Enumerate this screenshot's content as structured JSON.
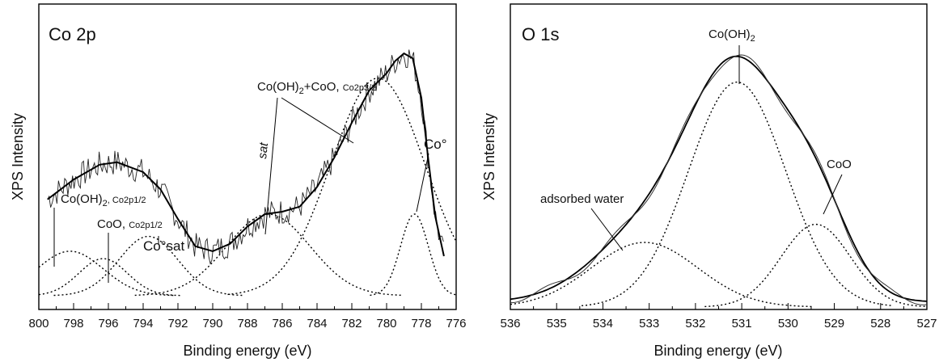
{
  "chart_data": [
    {
      "type": "line",
      "panel_label": "Co 2p",
      "xlabel": "Binding energy (eV)",
      "ylabel": "XPS Intensity",
      "xlim": [
        800,
        776
      ],
      "ylim": [
        0,
        1
      ],
      "x_reversed": true,
      "x_ticks": [
        "800",
        "798",
        "796",
        "794",
        "792",
        "790",
        "788",
        "786",
        "784",
        "782",
        "780",
        "778",
        "776"
      ],
      "series": [
        {
          "style": "envelope",
          "x": [
            799.5,
            798,
            796.5,
            795.5,
            794,
            793,
            792,
            791,
            790,
            789,
            788,
            787,
            786,
            785,
            784,
            783,
            782,
            781,
            780,
            779.5,
            779,
            778.5,
            778,
            777.6,
            777.2,
            776.7
          ],
          "y": [
            0.39,
            0.47,
            0.53,
            0.54,
            0.5,
            0.43,
            0.31,
            0.2,
            0.18,
            0.21,
            0.28,
            0.33,
            0.34,
            0.36,
            0.44,
            0.56,
            0.7,
            0.83,
            0.9,
            0.95,
            0.98,
            0.96,
            0.8,
            0.55,
            0.32,
            0.16
          ]
        },
        {
          "style": "component",
          "name": "Co(OH)2, Co2p1/2",
          "center": 798.2,
          "height": 0.18,
          "width": 1.9
        },
        {
          "style": "component",
          "name": "CoO, Co2p1/2",
          "center": 796.3,
          "height": 0.15,
          "width": 1.4
        },
        {
          "style": "component",
          "name": "Co°sat",
          "center": 793.7,
          "height": 0.24,
          "width": 1.7
        },
        {
          "style": "component",
          "name": "sat",
          "center": 786.8,
          "height": 0.33,
          "width": 2.4
        },
        {
          "style": "component",
          "name": "Co(OH)2+CoO, Co2p3/2",
          "center": 780.5,
          "height": 0.88,
          "width": 2.7
        },
        {
          "style": "component",
          "name": "Co°",
          "center": 778.4,
          "height": 0.33,
          "width": 0.8
        }
      ],
      "annotations": [
        {
          "text": "Co(OH)",
          "sub": "2",
          "suffix": ", Co2p1/2"
        },
        {
          "text": "CoO, ",
          "suffix": "Co2p1/2"
        },
        {
          "text": "Co°sat"
        },
        {
          "text": "sat"
        },
        {
          "text": "Co(OH)",
          "sub": "2",
          "mid": "+CoO, ",
          "suffix": "Co2p3/2"
        },
        {
          "text": "Co°"
        }
      ]
    },
    {
      "type": "line",
      "panel_label": "O 1s",
      "xlabel": "Binding energy (eV)",
      "ylabel": "XPS Intensity",
      "xlim": [
        536,
        527
      ],
      "ylim": [
        0,
        1
      ],
      "x_reversed": true,
      "x_ticks": [
        "536",
        "535",
        "534",
        "533",
        "532",
        "531",
        "530",
        "529",
        "528",
        "527"
      ],
      "series": [
        {
          "style": "component",
          "name": "adsorbed water",
          "center": 533.1,
          "height": 0.25,
          "width": 1.15
        },
        {
          "style": "component",
          "name": "Co(OH)2",
          "center": 531.1,
          "height": 0.87,
          "width": 1.05
        },
        {
          "style": "component",
          "name": "CoO",
          "center": 529.4,
          "height": 0.32,
          "width": 0.75
        }
      ],
      "annotations": [
        {
          "text": "Co(OH)",
          "sub": "2"
        },
        {
          "text": "CoO"
        },
        {
          "text": "adsorbed water"
        }
      ]
    }
  ]
}
